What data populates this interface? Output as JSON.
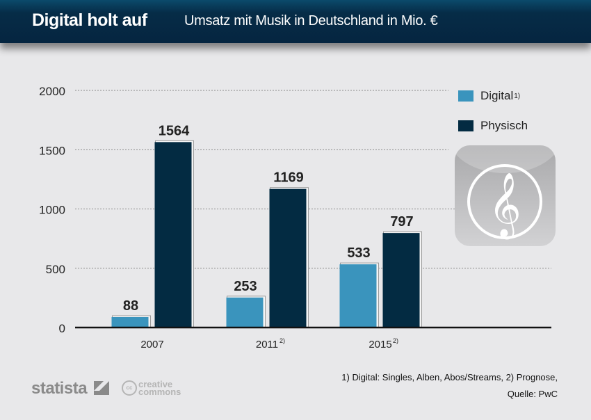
{
  "header": {
    "title": "Digital holt auf",
    "subtitle": "Umsatz mit Musik in Deutschland in Mio. €"
  },
  "chart_data": {
    "type": "bar",
    "title": "Digital holt auf",
    "subtitle": "Umsatz mit Musik in Deutschland in Mio. €",
    "categories": [
      "2007",
      "2011",
      "2015"
    ],
    "category_superscripts": [
      "",
      "2)",
      "2)"
    ],
    "series": [
      {
        "name": "Digital",
        "superscript": "1)",
        "color": "#3a94bd",
        "values": [
          88,
          253,
          533
        ]
      },
      {
        "name": "Physisch",
        "superscript": "",
        "color": "#032b42",
        "values": [
          1564,
          1169,
          797
        ]
      }
    ],
    "yticks": [
      0,
      500,
      1000,
      1500,
      2000
    ],
    "ylim": [
      0,
      2000
    ],
    "xlabel": "",
    "ylabel": "",
    "grid": true,
    "legend_position": "top-right",
    "data_labels": true
  },
  "legend": {
    "items": [
      {
        "label": "Digital",
        "sup": "1)",
        "color": "#3a94bd"
      },
      {
        "label": "Physisch",
        "sup": "",
        "color": "#032b42"
      }
    ]
  },
  "icon": {
    "name": "treble-clef-icon",
    "glyph": "𝄞"
  },
  "footer": {
    "footnote_line1": "1) Digital: Singles, Alben, Abos/Streams, 2) Prognose,",
    "footnote_line2": "Quelle: PwC",
    "brand": "statista",
    "license_line1": "creative",
    "license_line2": "commons",
    "license_badge": "cc"
  }
}
